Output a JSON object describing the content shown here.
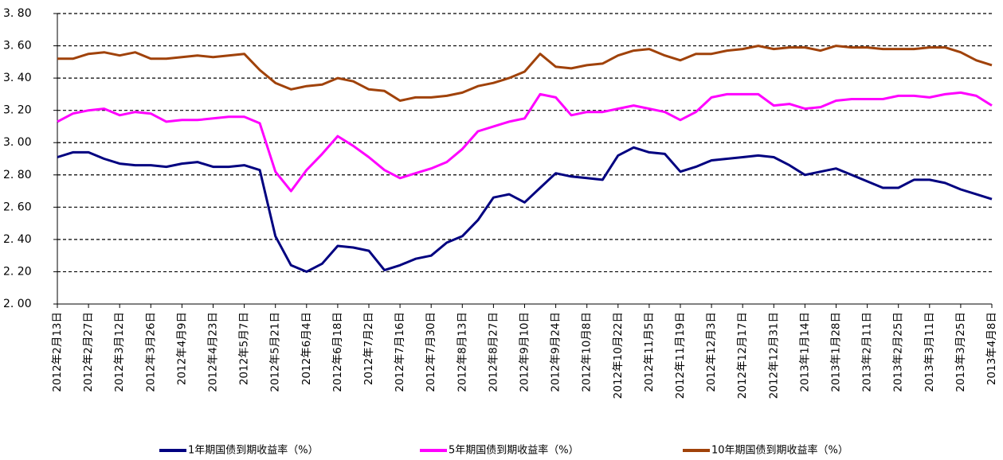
{
  "chart_data": {
    "type": "line",
    "categories": [
      "2012年2月13日",
      null,
      "2012年2月27日",
      null,
      "2012年3月12日",
      null,
      "2012年3月26日",
      null,
      "2012年4月9日",
      null,
      "2012年4月23日",
      null,
      "2012年5月7日",
      null,
      "2012年5月21日",
      null,
      "2012年6月4日",
      null,
      "2012年6月18日",
      null,
      "2012年7月2日",
      null,
      "2012年7月16日",
      null,
      "2012年7月30日",
      null,
      "2012年8月13日",
      null,
      "2012年8月27日",
      null,
      "2012年9月10日",
      null,
      "2012年9月24日",
      null,
      "2012年10月8日",
      null,
      "2012年10月22日",
      null,
      "2012年11月5日",
      null,
      "2012年11月19日",
      null,
      "2012年12月3日",
      null,
      "2012年12月17日",
      null,
      "2012年12月31日",
      null,
      "2013年1月14日",
      null,
      "2013年1月28日",
      null,
      "2013年2月11日",
      null,
      "2013年2月25日",
      null,
      "2013年3月11日",
      null,
      "2013年3月25日",
      null,
      "2013年4月8日"
    ],
    "series": [
      {
        "name": "1年期国债到期收益率（%）",
        "color": "#000080",
        "values": [
          2.91,
          2.94,
          2.94,
          2.9,
          2.87,
          2.86,
          2.86,
          2.85,
          2.87,
          2.88,
          2.85,
          2.85,
          2.86,
          2.83,
          2.42,
          2.24,
          2.2,
          2.25,
          2.36,
          2.35,
          2.33,
          2.21,
          2.24,
          2.28,
          2.3,
          2.38,
          2.42,
          2.52,
          2.66,
          2.68,
          2.63,
          2.72,
          2.81,
          2.79,
          2.78,
          2.77,
          2.92,
          2.97,
          2.94,
          2.93,
          2.82,
          2.85,
          2.89,
          2.9,
          2.91,
          2.92,
          2.91,
          2.86,
          2.8,
          2.82,
          2.84,
          2.8,
          2.76,
          2.72,
          2.72,
          2.77,
          2.77,
          2.75,
          2.71,
          2.68,
          2.65
        ]
      },
      {
        "name": "5年期国债到期收益率（%）",
        "color": "#ff00ff",
        "values": [
          3.13,
          3.18,
          3.2,
          3.21,
          3.17,
          3.19,
          3.18,
          3.13,
          3.14,
          3.14,
          3.15,
          3.16,
          3.16,
          3.12,
          2.82,
          2.7,
          2.83,
          2.93,
          3.04,
          2.98,
          2.91,
          2.83,
          2.78,
          2.81,
          2.84,
          2.88,
          2.96,
          3.07,
          3.1,
          3.13,
          3.15,
          3.3,
          3.28,
          3.17,
          3.19,
          3.19,
          3.21,
          3.23,
          3.21,
          3.19,
          3.14,
          3.19,
          3.28,
          3.3,
          3.3,
          3.3,
          3.23,
          3.24,
          3.21,
          3.22,
          3.26,
          3.27,
          3.27,
          3.27,
          3.29,
          3.29,
          3.28,
          3.3,
          3.31,
          3.29,
          3.23
        ]
      },
      {
        "name": "10年期国债到期收益率（%）",
        "color": "#a0420a",
        "values": [
          3.52,
          3.52,
          3.55,
          3.56,
          3.54,
          3.56,
          3.52,
          3.52,
          3.53,
          3.54,
          3.53,
          3.54,
          3.55,
          3.45,
          3.37,
          3.33,
          3.35,
          3.36,
          3.4,
          3.38,
          3.33,
          3.32,
          3.26,
          3.28,
          3.28,
          3.29,
          3.31,
          3.35,
          3.37,
          3.4,
          3.44,
          3.55,
          3.47,
          3.46,
          3.48,
          3.49,
          3.54,
          3.57,
          3.58,
          3.54,
          3.51,
          3.55,
          3.55,
          3.57,
          3.58,
          3.6,
          3.58,
          3.59,
          3.59,
          3.57,
          3.6,
          3.59,
          3.59,
          3.58,
          3.58,
          3.58,
          3.59,
          3.59,
          3.56,
          3.51,
          3.48
        ]
      }
    ],
    "ylim": [
      2.0,
      3.8
    ],
    "yticks": [
      {
        "value": 2.0,
        "label": "2. 00"
      },
      {
        "value": 2.2,
        "label": "2. 20"
      },
      {
        "value": 2.4,
        "label": "2. 40"
      },
      {
        "value": 2.6,
        "label": "2. 60"
      },
      {
        "value": 2.8,
        "label": "2. 80"
      },
      {
        "value": 3.0,
        "label": "3. 00"
      },
      {
        "value": 3.2,
        "label": "3. 20"
      },
      {
        "value": 3.4,
        "label": "3. 40"
      },
      {
        "value": 3.6,
        "label": "3. 60"
      },
      {
        "value": 3.8,
        "label": "3. 80"
      }
    ],
    "grid": true,
    "legend": "bottom"
  }
}
